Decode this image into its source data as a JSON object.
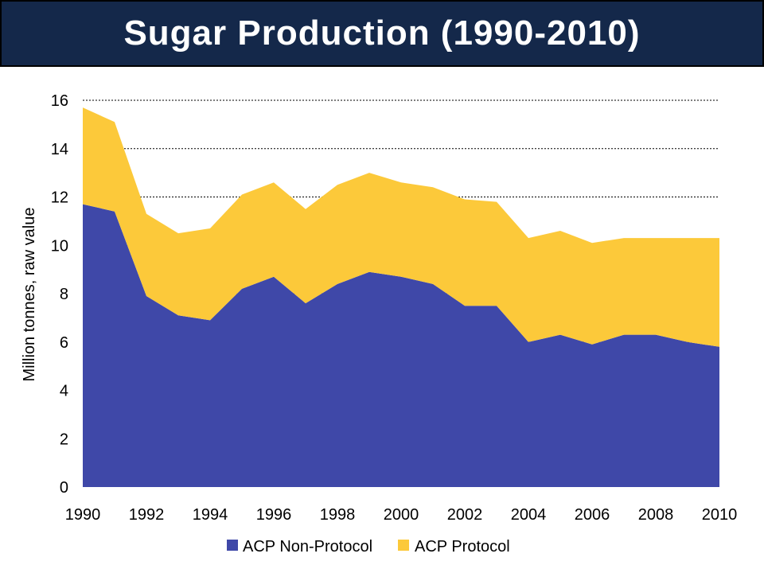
{
  "header": {
    "title": "Sugar Production (1990-2010)"
  },
  "colors": {
    "title_background": "#14284a",
    "non_protocol": "#3f48a8",
    "protocol": "#fcc93a"
  },
  "chart_data": {
    "type": "area",
    "stacked": true,
    "x": [
      1990,
      1991,
      1992,
      1993,
      1994,
      1995,
      1996,
      1997,
      1998,
      1999,
      2000,
      2001,
      2002,
      2003,
      2004,
      2005,
      2006,
      2007,
      2008,
      2009,
      2010
    ],
    "series": [
      {
        "name": "ACP Non-Protocol",
        "color": "#3f48a8",
        "values": [
          11.7,
          11.4,
          7.9,
          7.1,
          6.9,
          8.2,
          8.7,
          7.6,
          8.4,
          8.9,
          8.7,
          8.4,
          7.5,
          7.5,
          6.0,
          6.3,
          5.9,
          6.3,
          6.3,
          6.0,
          5.8
        ]
      },
      {
        "name": "ACP Protocol",
        "color": "#fcc93a",
        "values": [
          4.0,
          3.7,
          3.4,
          3.4,
          3.8,
          3.9,
          3.9,
          3.9,
          4.1,
          4.1,
          3.9,
          4.0,
          4.4,
          4.3,
          4.3,
          4.3,
          4.2,
          4.0,
          4.0,
          4.3,
          4.5
        ]
      }
    ],
    "x_tick_labels": [
      "1990",
      "1992",
      "1994",
      "1996",
      "1998",
      "2000",
      "2002",
      "2004",
      "2006",
      "2008",
      "2010"
    ],
    "y_tick_labels": [
      "0",
      "2",
      "4",
      "6",
      "8",
      "10",
      "12",
      "14",
      "16"
    ],
    "ylabel": "Million tonnes, raw value",
    "xlabel": "",
    "ylim": [
      0,
      16
    ],
    "xlim": [
      1990,
      2010
    ],
    "grid": "horizontal dotted",
    "legend_position": "bottom"
  }
}
